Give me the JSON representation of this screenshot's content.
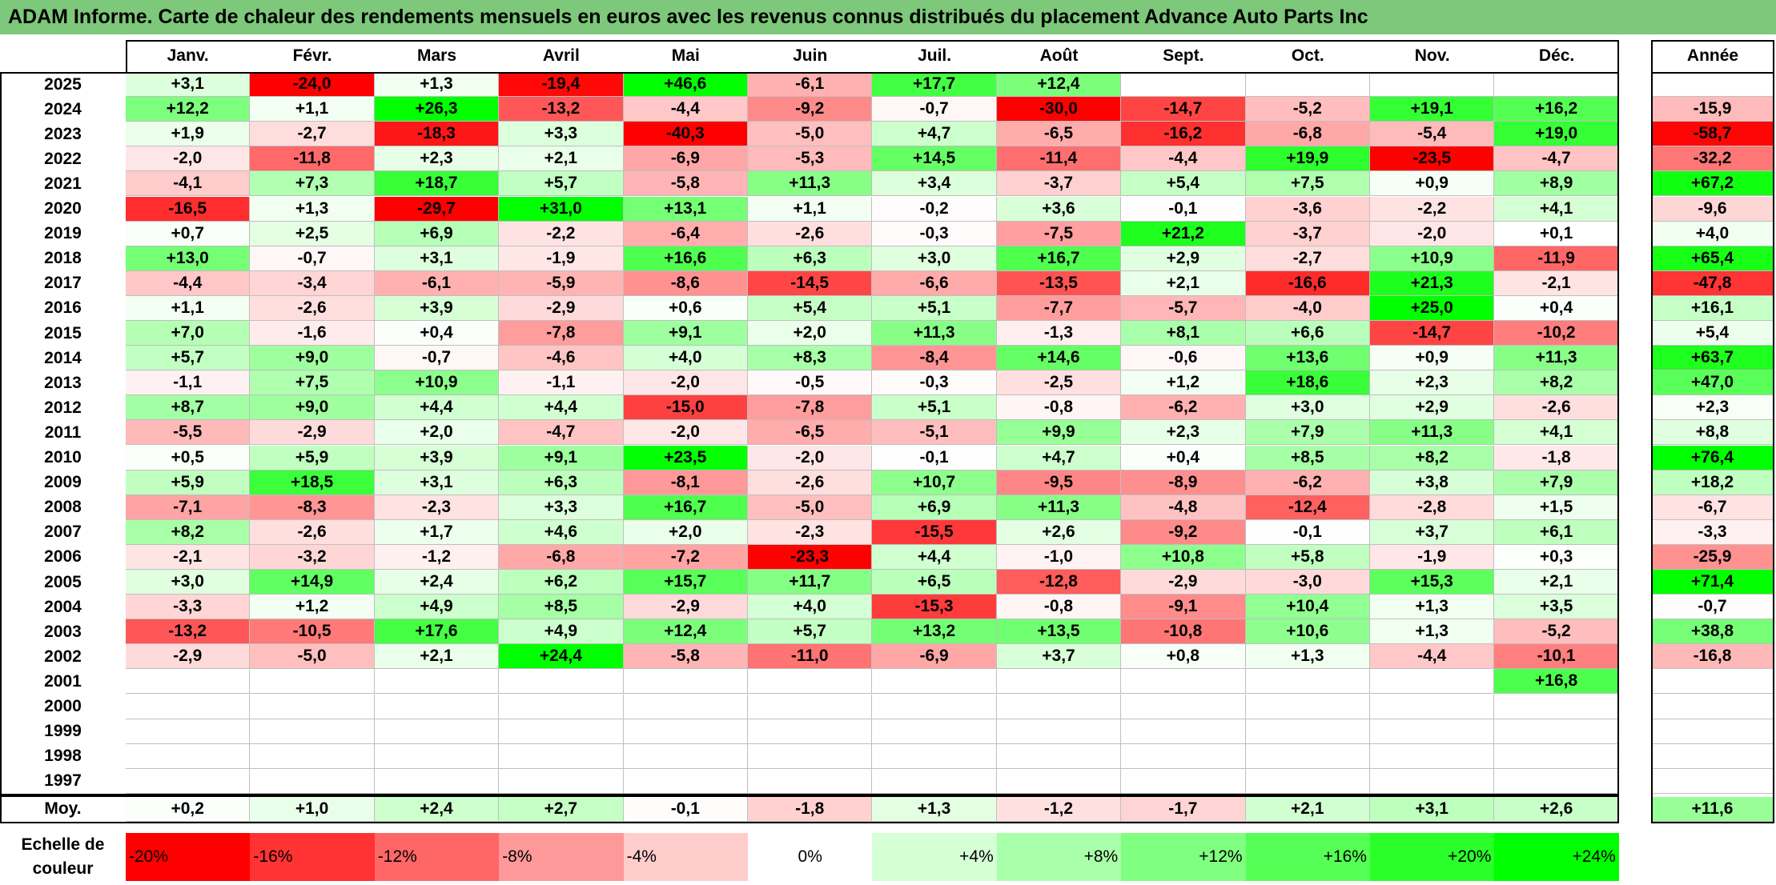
{
  "title": "ADAM Informe. Carte de chaleur des rendements mensuels en euros avec les revenus connus distribués du placement Advance Auto Parts Inc",
  "chart_data": {
    "type": "heatmap",
    "title": "ADAM Informe. Carte de chaleur des rendements mensuels en euros avec les revenus connus distribués du placement Advance Auto Parts Inc",
    "columns": [
      "Janv.",
      "Févr.",
      "Mars",
      "Avril",
      "Mai",
      "Juin",
      "Juil.",
      "Août",
      "Sept.",
      "Oct.",
      "Nov.",
      "Déc."
    ],
    "year_column_label": "Année",
    "rows": [
      {
        "year": "2025",
        "values": [
          "+3,1",
          "-24,0",
          "+1,3",
          "-19,4",
          "+46,6",
          "-6,1",
          "+17,7",
          "+12,4",
          "",
          "",
          "",
          ""
        ],
        "annual": ""
      },
      {
        "year": "2024",
        "values": [
          "+12,2",
          "+1,1",
          "+26,3",
          "-13,2",
          "-4,4",
          "-9,2",
          "-0,7",
          "-30,0",
          "-14,7",
          "-5,2",
          "+19,1",
          "+16,2"
        ],
        "annual": "-15,9"
      },
      {
        "year": "2023",
        "values": [
          "+1,9",
          "-2,7",
          "-18,3",
          "+3,3",
          "-40,3",
          "-5,0",
          "+4,7",
          "-6,5",
          "-16,2",
          "-6,8",
          "-5,4",
          "+19,0"
        ],
        "annual": "-58,7"
      },
      {
        "year": "2022",
        "values": [
          "-2,0",
          "-11,8",
          "+2,3",
          "+2,1",
          "-6,9",
          "-5,3",
          "+14,5",
          "-11,4",
          "-4,4",
          "+19,9",
          "-23,5",
          "-4,7"
        ],
        "annual": "-32,2"
      },
      {
        "year": "2021",
        "values": [
          "-4,1",
          "+7,3",
          "+18,7",
          "+5,7",
          "-5,8",
          "+11,3",
          "+3,4",
          "-3,7",
          "+5,4",
          "+7,5",
          "+0,9",
          "+8,9"
        ],
        "annual": "+67,2"
      },
      {
        "year": "2020",
        "values": [
          "-16,5",
          "+1,3",
          "-29,7",
          "+31,0",
          "+13,1",
          "+1,1",
          "-0,2",
          "+3,6",
          "-0,1",
          "-3,6",
          "-2,2",
          "+4,1"
        ],
        "annual": "-9,6"
      },
      {
        "year": "2019",
        "values": [
          "+0,7",
          "+2,5",
          "+6,9",
          "-2,2",
          "-6,4",
          "-2,6",
          "-0,3",
          "-7,5",
          "+21,2",
          "-3,7",
          "-2,0",
          "+0,1"
        ],
        "annual": "+4,0"
      },
      {
        "year": "2018",
        "values": [
          "+13,0",
          "-0,7",
          "+3,1",
          "-1,9",
          "+16,6",
          "+6,3",
          "+3,0",
          "+16,7",
          "+2,9",
          "-2,7",
          "+10,9",
          "-11,9"
        ],
        "annual": "+65,4"
      },
      {
        "year": "2017",
        "values": [
          "-4,4",
          "-3,4",
          "-6,1",
          "-5,9",
          "-8,6",
          "-14,5",
          "-6,6",
          "-13,5",
          "+2,1",
          "-16,6",
          "+21,3",
          "-2,1"
        ],
        "annual": "-47,8"
      },
      {
        "year": "2016",
        "values": [
          "+1,1",
          "-2,6",
          "+3,9",
          "-2,9",
          "+0,6",
          "+5,4",
          "+5,1",
          "-7,7",
          "-5,7",
          "-4,0",
          "+25,0",
          "+0,4"
        ],
        "annual": "+16,1"
      },
      {
        "year": "2015",
        "values": [
          "+7,0",
          "-1,6",
          "+0,4",
          "-7,8",
          "+9,1",
          "+2,0",
          "+11,3",
          "-1,3",
          "+8,1",
          "+6,6",
          "-14,7",
          "-10,2"
        ],
        "annual": "+5,4"
      },
      {
        "year": "2014",
        "values": [
          "+5,7",
          "+9,0",
          "-0,7",
          "-4,6",
          "+4,0",
          "+8,3",
          "-8,4",
          "+14,6",
          "-0,6",
          "+13,6",
          "+0,9",
          "+11,3"
        ],
        "annual": "+63,7"
      },
      {
        "year": "2013",
        "values": [
          "-1,1",
          "+7,5",
          "+10,9",
          "-1,1",
          "-2,0",
          "-0,5",
          "-0,3",
          "-2,5",
          "+1,2",
          "+18,6",
          "+2,3",
          "+8,2"
        ],
        "annual": "+47,0"
      },
      {
        "year": "2012",
        "values": [
          "+8,7",
          "+9,0",
          "+4,4",
          "+4,4",
          "-15,0",
          "-7,8",
          "+5,1",
          "-0,8",
          "-6,2",
          "+3,0",
          "+2,9",
          "-2,6"
        ],
        "annual": "+2,3"
      },
      {
        "year": "2011",
        "values": [
          "-5,5",
          "-2,9",
          "+2,0",
          "-4,7",
          "-2,0",
          "-6,5",
          "-5,1",
          "+9,9",
          "+2,3",
          "+7,9",
          "+11,3",
          "+4,1"
        ],
        "annual": "+8,8"
      },
      {
        "year": "2010",
        "values": [
          "+0,5",
          "+5,9",
          "+3,9",
          "+9,1",
          "+23,5",
          "-2,0",
          "-0,1",
          "+4,7",
          "+0,4",
          "+8,5",
          "+8,2",
          "-1,8"
        ],
        "annual": "+76,4"
      },
      {
        "year": "2009",
        "values": [
          "+5,9",
          "+18,5",
          "+3,1",
          "+6,3",
          "-8,1",
          "-2,6",
          "+10,7",
          "-9,5",
          "-8,9",
          "-6,2",
          "+3,8",
          "+7,9"
        ],
        "annual": "+18,2"
      },
      {
        "year": "2008",
        "values": [
          "-7,1",
          "-8,3",
          "-2,3",
          "+3,3",
          "+16,7",
          "-5,0",
          "+6,9",
          "+11,3",
          "-4,8",
          "-12,4",
          "-2,8",
          "+1,5"
        ],
        "annual": "-6,7"
      },
      {
        "year": "2007",
        "values": [
          "+8,2",
          "-2,6",
          "+1,7",
          "+4,6",
          "+2,0",
          "-2,3",
          "-15,5",
          "+2,6",
          "-9,2",
          "-0,1",
          "+3,7",
          "+6,1"
        ],
        "annual": "-3,3"
      },
      {
        "year": "2006",
        "values": [
          "-2,1",
          "-3,2",
          "-1,2",
          "-6,8",
          "-7,2",
          "-23,3",
          "+4,4",
          "-1,0",
          "+10,8",
          "+5,8",
          "-1,9",
          "+0,3"
        ],
        "annual": "-25,9"
      },
      {
        "year": "2005",
        "values": [
          "+3,0",
          "+14,9",
          "+2,4",
          "+6,2",
          "+15,7",
          "+11,7",
          "+6,5",
          "-12,8",
          "-2,9",
          "-3,0",
          "+15,3",
          "+2,1"
        ],
        "annual": "+71,4"
      },
      {
        "year": "2004",
        "values": [
          "-3,3",
          "+1,2",
          "+4,9",
          "+8,5",
          "-2,9",
          "+4,0",
          "-15,3",
          "-0,8",
          "-9,1",
          "+10,4",
          "+1,3",
          "+3,5"
        ],
        "annual": "-0,7"
      },
      {
        "year": "2003",
        "values": [
          "-13,2",
          "-10,5",
          "+17,6",
          "+4,9",
          "+12,4",
          "+5,7",
          "+13,2",
          "+13,5",
          "-10,8",
          "+10,6",
          "+1,3",
          "-5,2"
        ],
        "annual": "+38,8"
      },
      {
        "year": "2002",
        "values": [
          "-2,9",
          "-5,0",
          "+2,1",
          "+24,4",
          "-5,8",
          "-11,0",
          "-6,9",
          "+3,7",
          "+0,8",
          "+1,3",
          "-4,4",
          "-10,1"
        ],
        "annual": "-16,8"
      },
      {
        "year": "2001",
        "values": [
          "",
          "",
          "",
          "",
          "",
          "",
          "",
          "",
          "",
          "",
          "",
          "+16,8"
        ],
        "annual": ""
      },
      {
        "year": "2000",
        "values": [
          "",
          "",
          "",
          "",
          "",
          "",
          "",
          "",
          "",
          "",
          "",
          ""
        ],
        "annual": ""
      },
      {
        "year": "1999",
        "values": [
          "",
          "",
          "",
          "",
          "",
          "",
          "",
          "",
          "",
          "",
          "",
          ""
        ],
        "annual": ""
      },
      {
        "year": "1998",
        "values": [
          "",
          "",
          "",
          "",
          "",
          "",
          "",
          "",
          "",
          "",
          "",
          ""
        ],
        "annual": ""
      },
      {
        "year": "1997",
        "values": [
          "",
          "",
          "",
          "",
          "",
          "",
          "",
          "",
          "",
          "",
          "",
          ""
        ],
        "annual": ""
      }
    ],
    "average": {
      "label": "Moy.",
      "values": [
        "+0,2",
        "+1,0",
        "+2,4",
        "+2,7",
        "-0,1",
        "-1,8",
        "+1,3",
        "-1,2",
        "-1,7",
        "+2,1",
        "+3,1",
        "+2,6"
      ],
      "annual": "+11,6"
    },
    "color_scale": {
      "label": "Echelle de couleur",
      "stops": [
        "-20%",
        "-16%",
        "-12%",
        "-8%",
        "-4%",
        "0%",
        "+4%",
        "+8%",
        "+12%",
        "+16%",
        "+20%",
        "+24%"
      ],
      "stop_values": [
        -20,
        -16,
        -12,
        -8,
        -4,
        0,
        4,
        8,
        12,
        16,
        20,
        24
      ],
      "negative_color": "#ff0000",
      "positive_color": "#00ff00",
      "neutral_color": "#ffffff"
    }
  }
}
